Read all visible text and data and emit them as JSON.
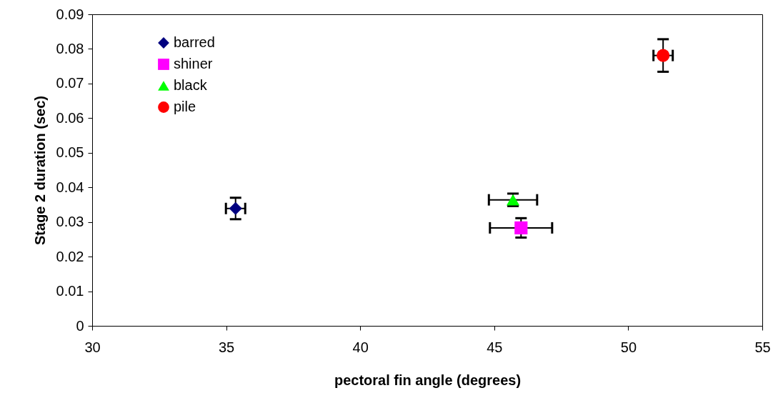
{
  "chart_data": {
    "type": "scatter",
    "xlabel": "pectoral fin angle (degrees)",
    "ylabel": "Stage 2 duration (sec)",
    "xlim": [
      30,
      55
    ],
    "xticks": [
      30,
      35,
      40,
      45,
      50,
      55
    ],
    "ylim": [
      0,
      0.09
    ],
    "yticks": [
      0,
      0.01,
      0.02,
      0.03,
      0.04,
      0.05,
      0.06,
      0.07,
      0.08,
      0.09
    ],
    "grid": false,
    "legend": "top left",
    "series": [
      {
        "name": "barred",
        "color": "#000080",
        "marker": "diamond",
        "x": [
          35.35
        ],
        "values": [
          0.0339
        ],
        "errors": [
          0.0031
        ],
        "xerrors": [
          0.36
        ]
      },
      {
        "name": "shiner",
        "color": "#ff00ff",
        "marker": "square",
        "x": [
          46.0
        ],
        "values": [
          0.0283
        ],
        "errors": [
          0.0028
        ],
        "xerrors": [
          1.16
        ]
      },
      {
        "name": "black",
        "color": "#00ff00",
        "marker": "triangle",
        "x": [
          45.7
        ],
        "values": [
          0.0364
        ],
        "errors": [
          0.0018
        ],
        "xerrors": [
          0.9
        ]
      },
      {
        "name": "pile",
        "color": "#ff0000",
        "marker": "circle",
        "x": [
          51.3
        ],
        "values": [
          0.0781
        ],
        "errors": [
          0.0047
        ],
        "xerrors": [
          0.36
        ]
      }
    ]
  }
}
